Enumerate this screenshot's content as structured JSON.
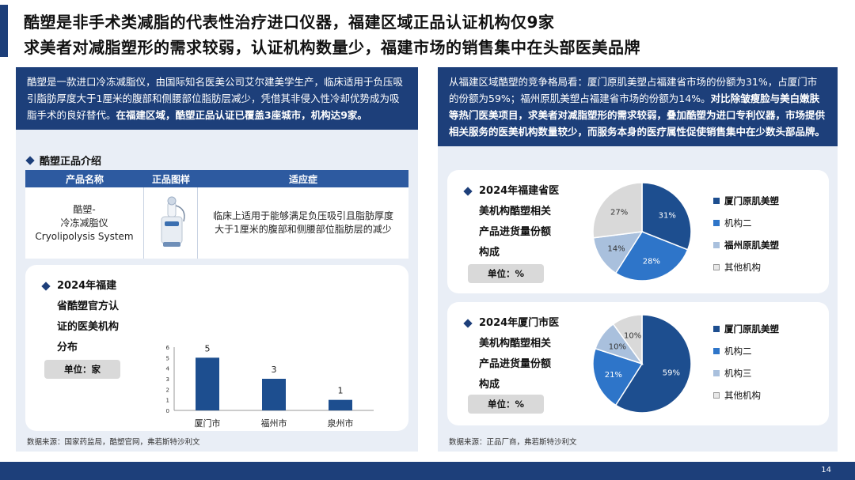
{
  "header": {
    "title_line1": "酷塑是非手术类减脂的代表性治疗进口仪器，福建区域正品认证机构仅9家",
    "title_line2": "求美者对减脂塑形的需求较弱，认证机构数量少，福建市场的销售集中在头部医美品牌"
  },
  "left": {
    "intro_plain": "酷塑是一款进口冷冻减脂仪，由国际知名医美公司艾尔建美学生产，临床适用于负压吸引脂肪厚度大于1厘米的腹部和侧腰部位脂肪层减少，凭借其非侵入性冷却优势成为吸脂手术的良好替代。",
    "intro_bold": "在福建区域，酷塑正品认证已覆盖3座城市，机构达9家。",
    "section_title": "酷塑正品介绍",
    "table": {
      "headers": [
        "产品名称",
        "正品图样",
        "适应症"
      ],
      "product_line1": "酷塑-",
      "product_line2": "冷冻减脂仪",
      "product_line3": "Cryolipolysis System",
      "indication": "临床上适用于能够满足负压吸引且脂肪厚度大于1厘米的腹部和侧腰部位脂肪层的减少"
    },
    "chart_card": {
      "title_l1": "2024年福建",
      "title_l2": "省酷塑官方认",
      "title_l3": "证的医美机构",
      "title_l4": "分布",
      "unit": "单位：家"
    },
    "source": "数据来源：国家药监局，酷塑官网，弗若斯特沙利文"
  },
  "right": {
    "intro_plain": "从福建区域酷塑的竞争格局看：厦门原肌美塑占福建省市场的份额为31%，占厦门市的份额为59%；福州原肌美塑占福建省市场的份额为14%。",
    "intro_bold": "对比除皱瘦脸与美白嫩肤等热门医美项目，求美者对减脂塑形的需求较弱，叠加酷塑为进口专利仪器，市场提供相关服务的医美机构数量较少，而服务本身的医疗属性促使销售集中在少数头部品牌。",
    "card1": {
      "title_l1": "2024年福建省医",
      "title_l2": "美机构酷塑相关",
      "title_l3": "产品进货量份额",
      "title_l4": "构成",
      "unit": "单位：%"
    },
    "card2": {
      "title_l1": "2024年厦门市医",
      "title_l2": "美机构酷塑相关",
      "title_l3": "产品进货量份额",
      "title_l4": "构成",
      "unit": "单位：%"
    },
    "source": "数据来源：正品厂商，弗若斯特沙利文"
  },
  "page_number": "14",
  "colors": {
    "navy": "#1d3f7a",
    "blue": "#2e75c9",
    "light_blue": "#a9c0dd",
    "light_gray": "#d9d9d9",
    "panel_bg": "#e9eef6"
  },
  "chart_data": [
    {
      "type": "bar",
      "categories": [
        "厦门市",
        "福州市",
        "泉州市"
      ],
      "values": [
        5,
        3,
        1
      ],
      "ylim": [
        0,
        6
      ],
      "yticks": [
        0,
        1,
        2,
        3,
        4,
        5,
        6
      ],
      "title": "",
      "xlabel": "",
      "ylabel": "",
      "grid": false
    },
    {
      "type": "pie",
      "labels": [
        "厦门原肌美塑",
        "机构二",
        "福州原肌美塑",
        "其他机构"
      ],
      "values": [
        31,
        28,
        14,
        27
      ],
      "colors": [
        "#1d4e8f",
        "#2e75c9",
        "#a9c0dd",
        "#d9d9d9"
      ],
      "legend": "right"
    },
    {
      "type": "pie",
      "labels": [
        "厦门原肌美塑",
        "机构二",
        "机构三",
        "其他机构"
      ],
      "values": [
        59,
        21,
        10,
        10
      ],
      "colors": [
        "#1d4e8f",
        "#2e75c9",
        "#a9c0dd",
        "#d9d9d9"
      ],
      "legend": "right"
    }
  ]
}
